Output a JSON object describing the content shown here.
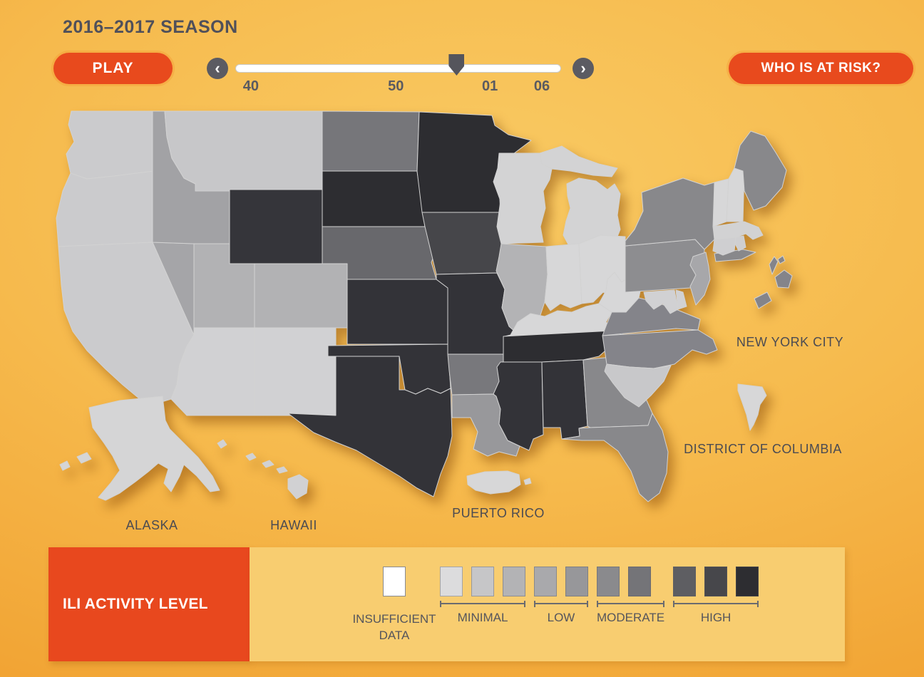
{
  "header": {
    "season_title": "2016–2017 SEASON"
  },
  "controls": {
    "play_label": "PLAY",
    "risk_label": "WHO IS AT RISK?",
    "slider": {
      "prev_symbol": "‹",
      "next_symbol": "›",
      "ticks": [
        "40",
        "50",
        "01",
        "06"
      ],
      "tick_percents": [
        4.8,
        49.5,
        78.5,
        94.5
      ],
      "thumb_percent": 68
    }
  },
  "map": {
    "labels": {
      "nyc": "NEW YORK CITY",
      "dc": "DISTRICT OF COLUMBIA",
      "alaska": "ALASKA",
      "hawaii": "HAWAII",
      "puerto_rico": "PUERTO RICO"
    },
    "states": [
      {
        "id": "WA",
        "name": "Washington",
        "color": "#cbcbcd"
      },
      {
        "id": "OR",
        "name": "Oregon",
        "color": "#cbcbcd"
      },
      {
        "id": "CA",
        "name": "California",
        "color": "#cbcbcd"
      },
      {
        "id": "NV",
        "name": "Nevada",
        "color": "#a5a5a8"
      },
      {
        "id": "ID",
        "name": "Idaho",
        "color": "#a2a2a5"
      },
      {
        "id": "MT",
        "name": "Montana",
        "color": "#c7c7c9"
      },
      {
        "id": "WY",
        "name": "Wyoming",
        "color": "#35353a"
      },
      {
        "id": "UT",
        "name": "Utah",
        "color": "#b2b2b4"
      },
      {
        "id": "CO",
        "name": "Colorado",
        "color": "#b2b2b4"
      },
      {
        "id": "AZ",
        "name": "Arizona",
        "color": "#d1d1d3"
      },
      {
        "id": "NM",
        "name": "New Mexico",
        "color": "#d1d1d3"
      },
      {
        "id": "ND",
        "name": "North Dakota",
        "color": "#76767a"
      },
      {
        "id": "SD",
        "name": "South Dakota",
        "color": "#2d2d31"
      },
      {
        "id": "NE",
        "name": "Nebraska",
        "color": "#68686c"
      },
      {
        "id": "KS",
        "name": "Kansas",
        "color": "#333338"
      },
      {
        "id": "OK",
        "name": "Oklahoma",
        "color": "#333338"
      },
      {
        "id": "TX",
        "name": "Texas",
        "color": "#333338"
      },
      {
        "id": "MN",
        "name": "Minnesota",
        "color": "#2d2d31"
      },
      {
        "id": "IA",
        "name": "Iowa",
        "color": "#46464a"
      },
      {
        "id": "MO",
        "name": "Missouri",
        "color": "#333338"
      },
      {
        "id": "AR",
        "name": "Arkansas",
        "color": "#78787c"
      },
      {
        "id": "LA",
        "name": "Louisiana",
        "color": "#98989b"
      },
      {
        "id": "WI",
        "name": "Wisconsin",
        "color": "#d3d3d4"
      },
      {
        "id": "IL",
        "name": "Illinois",
        "color": "#b3b3b5"
      },
      {
        "id": "MI",
        "name": "Michigan",
        "color": "#d3d3d4"
      },
      {
        "id": "IN",
        "name": "Indiana",
        "color": "#d7d7d8"
      },
      {
        "id": "OH",
        "name": "Ohio",
        "color": "#d7d7d8"
      },
      {
        "id": "KY",
        "name": "Kentucky",
        "color": "#d7d7d8"
      },
      {
        "id": "TN",
        "name": "Tennessee",
        "color": "#2d2d31"
      },
      {
        "id": "MS",
        "name": "Mississippi",
        "color": "#333338"
      },
      {
        "id": "AL",
        "name": "Alabama",
        "color": "#333338"
      },
      {
        "id": "GA",
        "name": "Georgia",
        "color": "#88888b"
      },
      {
        "id": "FL",
        "name": "Florida",
        "color": "#88888b"
      },
      {
        "id": "SC",
        "name": "South Carolina",
        "color": "#c8c8ca"
      },
      {
        "id": "NC",
        "name": "North Carolina",
        "color": "#84848a"
      },
      {
        "id": "VA",
        "name": "Virginia",
        "color": "#84848a"
      },
      {
        "id": "WV",
        "name": "West Virginia",
        "color": "#d7d7d8"
      },
      {
        "id": "PA",
        "name": "Pennsylvania",
        "color": "#8d8d90"
      },
      {
        "id": "NY",
        "name": "New York",
        "color": "#88888b"
      },
      {
        "id": "NJ",
        "name": "New Jersey",
        "color": "#a7a7aa"
      },
      {
        "id": "DE",
        "name": "Delaware",
        "color": "#d1d1d3"
      },
      {
        "id": "MD",
        "name": "Maryland",
        "color": "#d1d1d3"
      },
      {
        "id": "CT",
        "name": "Connecticut",
        "color": "#cfcfd1"
      },
      {
        "id": "RI",
        "name": "Rhode Island",
        "color": "#cfcfd1"
      },
      {
        "id": "MA",
        "name": "Massachusetts",
        "color": "#d2d2d3"
      },
      {
        "id": "VT",
        "name": "Vermont",
        "color": "#d7d7d8"
      },
      {
        "id": "NH",
        "name": "New Hampshire",
        "color": "#d7d7d8"
      },
      {
        "id": "ME",
        "name": "Maine",
        "color": "#88888b"
      },
      {
        "id": "AK",
        "name": "Alaska",
        "color": "#d5d5d6"
      },
      {
        "id": "HI",
        "name": "Hawaii",
        "color": "#d1d1d3"
      },
      {
        "id": "PR",
        "name": "Puerto Rico",
        "color": "#d7d7d8"
      },
      {
        "id": "DC",
        "name": "District of Columbia",
        "color": "#d7d7d8"
      },
      {
        "id": "NYC",
        "name": "New York City",
        "color": "#84848a"
      }
    ]
  },
  "legend": {
    "title": "ILI ACTIVITY LEVEL",
    "insufficient": {
      "label": "INSUFFICIENT DATA",
      "color": "#ffffff"
    },
    "groups": [
      {
        "label": "MINIMAL",
        "colors": [
          "#dcdcdd",
          "#c6c6c8",
          "#b3b3b5"
        ]
      },
      {
        "label": "LOW",
        "colors": [
          "#a9a9ac",
          "#97979a"
        ]
      },
      {
        "label": "MODERATE",
        "colors": [
          "#8a8a8d",
          "#747478"
        ]
      },
      {
        "label": "HIGH",
        "colors": [
          "#5e5e62",
          "#47474b",
          "#2d2d31"
        ]
      }
    ]
  },
  "colors": {
    "accent": "#e8481e",
    "legend_panel": "#f8cd70",
    "track": "#ffffff",
    "thumb": "#55555c"
  }
}
